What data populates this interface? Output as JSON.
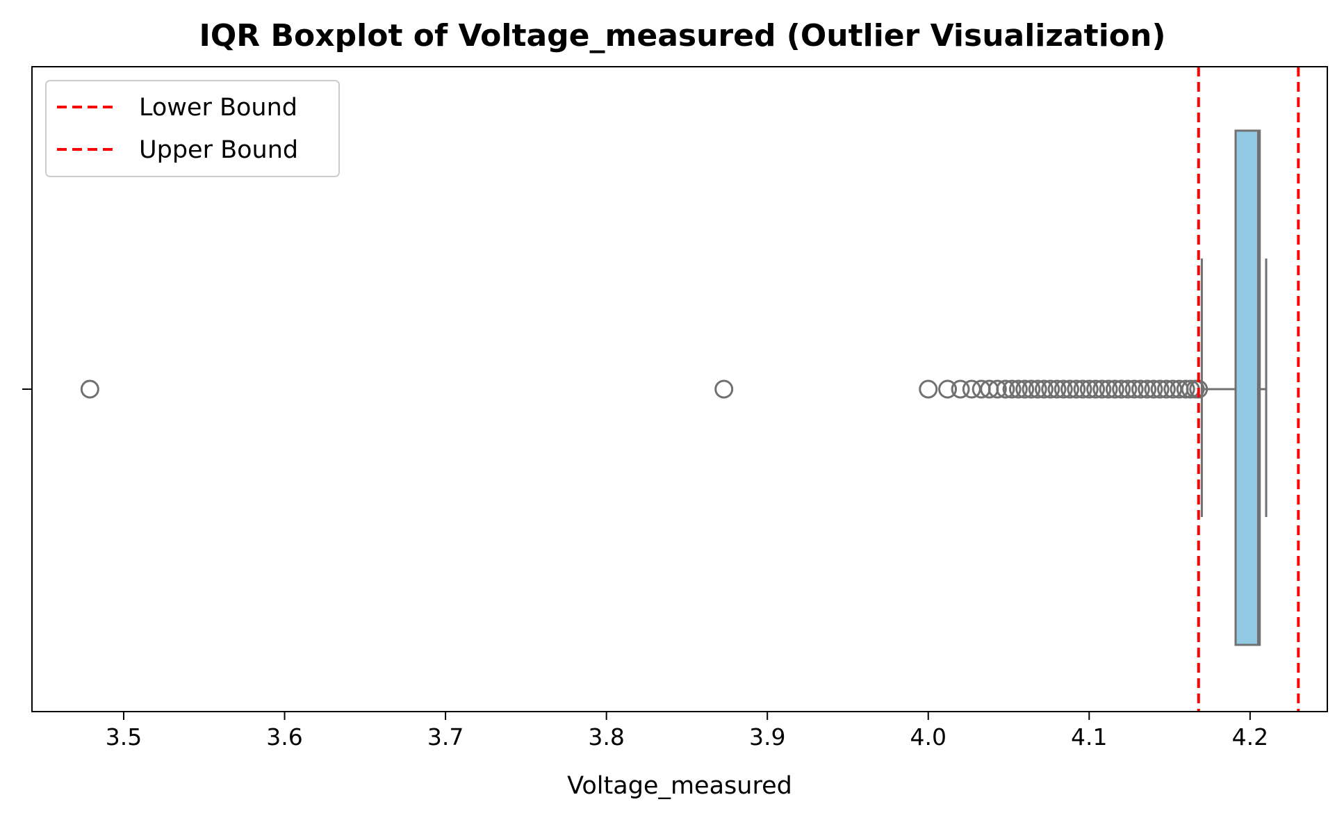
{
  "chart_data": {
    "type": "boxplot",
    "title": "IQR Boxplot of Voltage_measured (Outlier Visualization)",
    "xlabel": "Voltage_measured",
    "ylabel": "",
    "xlim": [
      3.443,
      4.248
    ],
    "xticks": [
      3.5,
      3.6,
      3.7,
      3.8,
      3.9,
      4.0,
      4.1,
      4.2
    ],
    "xtick_labels": [
      "3.5",
      "3.6",
      "3.7",
      "3.8",
      "3.9",
      "4.0",
      "4.1",
      "4.2"
    ],
    "box": {
      "q1": 4.191,
      "median": 4.205,
      "q3": 4.206,
      "whisker_low": 4.17,
      "whisker_high": 4.21,
      "fill_color": "#92c9e3",
      "edge_color": "#707070"
    },
    "outliers": [
      3.479,
      3.873,
      4.0,
      4.012,
      4.02,
      4.027,
      4.033,
      4.038,
      4.043,
      4.048,
      4.052,
      4.056,
      4.06,
      4.064,
      4.068,
      4.072,
      4.076,
      4.08,
      4.084,
      4.088,
      4.092,
      4.096,
      4.1,
      4.104,
      4.108,
      4.112,
      4.116,
      4.12,
      4.124,
      4.128,
      4.132,
      4.136,
      4.14,
      4.144,
      4.148,
      4.152,
      4.156,
      4.16,
      4.163,
      4.166,
      4.168
    ],
    "reference_lines": [
      {
        "name": "Lower Bound",
        "value": 4.168,
        "color": "#ff0000",
        "style": "dashed"
      },
      {
        "name": "Upper Bound",
        "value": 4.23,
        "color": "#ff0000",
        "style": "dashed"
      }
    ],
    "legend": {
      "placement": "top-left",
      "entries": [
        "Lower Bound",
        "Upper Bound"
      ]
    },
    "grid": false
  }
}
